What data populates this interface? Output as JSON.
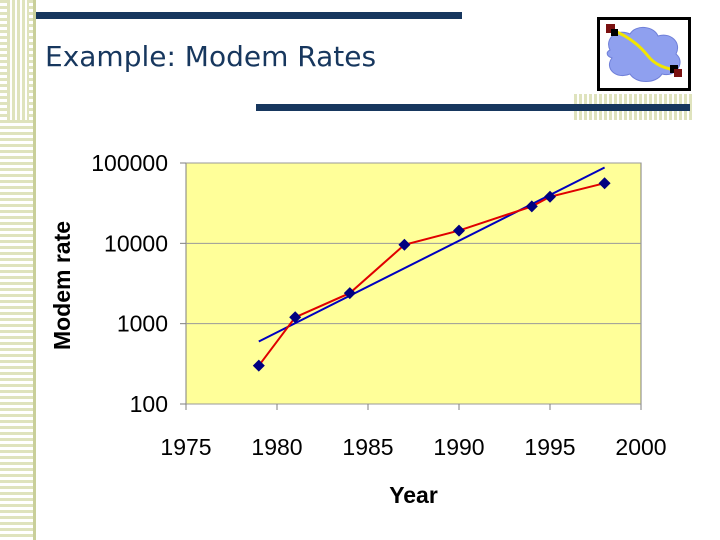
{
  "slide": {
    "title": "Example: Modem Rates"
  },
  "colors": {
    "title": "#17375e",
    "rule": "#17375e",
    "plot_bg": "#ffff99",
    "data_line": "#e00000",
    "marker": "#000080",
    "trend_line": "#0000c0"
  },
  "icons": {
    "logo": "network-cloud-logo-icon"
  },
  "chart_data": {
    "type": "line",
    "xlabel": "Year",
    "ylabel": "Modem rate",
    "x_ticks": [
      "1975",
      "1980",
      "1985",
      "1990",
      "1995",
      "2000"
    ],
    "y_ticks": [
      "100",
      "1000",
      "10000",
      "100000"
    ],
    "xlim": [
      1975,
      2000
    ],
    "ylim": [
      100,
      100000
    ],
    "y_scale": "log",
    "grid": "horizontal",
    "series": [
      {
        "kind": "data",
        "markers": "diamond",
        "points": [
          [
            1979,
            300
          ],
          [
            1981,
            1200
          ],
          [
            1984,
            2400
          ],
          [
            1987,
            9600
          ],
          [
            1990,
            14400
          ],
          [
            1994,
            28800
          ],
          [
            1995,
            38000
          ],
          [
            1998,
            56000
          ]
        ]
      },
      {
        "kind": "trend",
        "points": [
          [
            1979,
            600
          ],
          [
            1998,
            88000
          ]
        ]
      }
    ]
  }
}
